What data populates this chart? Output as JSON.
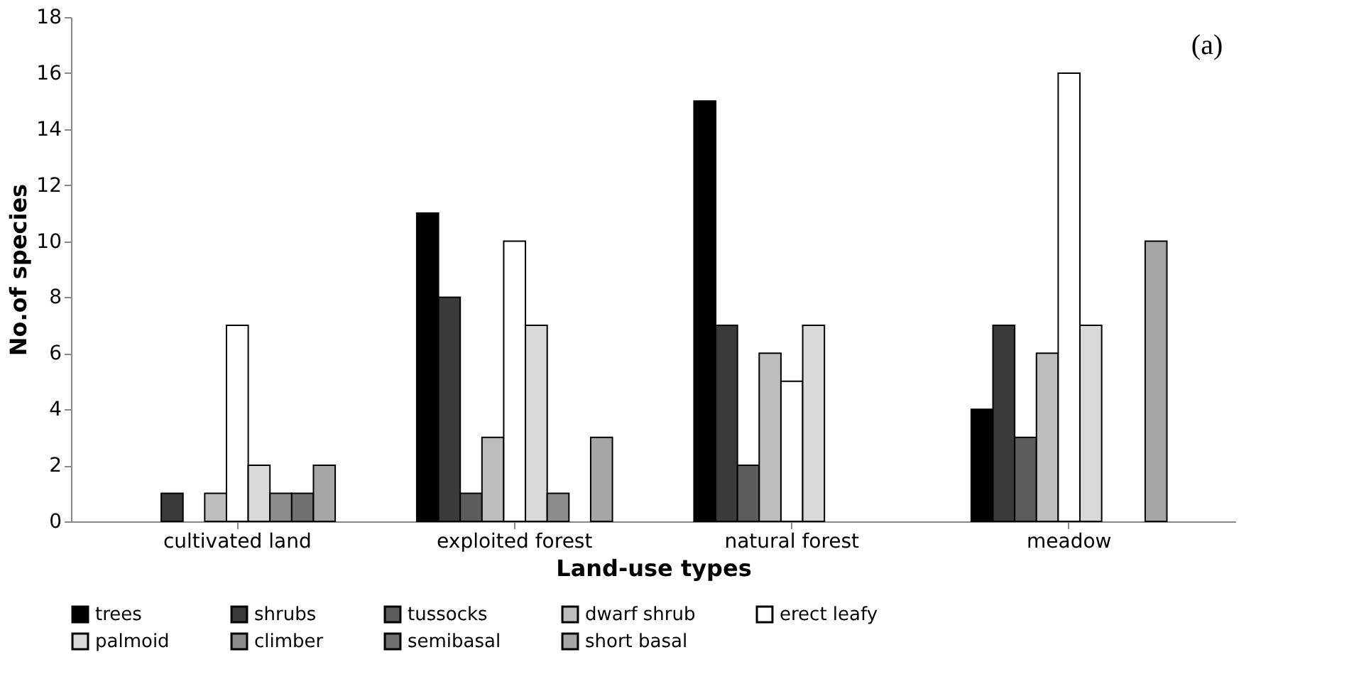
{
  "chart_data": {
    "type": "bar",
    "xlabel": "Land-use types",
    "ylabel": "No.of species",
    "categories": [
      "cultivated land",
      "exploited forest",
      "natural forest",
      "meadow"
    ],
    "series": [
      {
        "name": "trees",
        "color": "#000000",
        "values": [
          null,
          11,
          15,
          4
        ]
      },
      {
        "name": "shrubs",
        "color": "#3a3a3a",
        "values": [
          1,
          8,
          7,
          7
        ]
      },
      {
        "name": "tussocks",
        "color": "#5c5c5c",
        "values": [
          null,
          1,
          2,
          3
        ]
      },
      {
        "name": "dwarf shrub",
        "color": "#bdbdbd",
        "values": [
          1,
          3,
          6,
          6
        ]
      },
      {
        "name": "erect leafy",
        "color": "#ffffff",
        "values": [
          7,
          10,
          5,
          16
        ]
      },
      {
        "name": "palmoid",
        "color": "#d9d9d9",
        "values": [
          2,
          7,
          7,
          7
        ]
      },
      {
        "name": "climber",
        "color": "#8c8c8c",
        "values": [
          1,
          1,
          null,
          null
        ]
      },
      {
        "name": "semibasal",
        "color": "#707070",
        "values": [
          1,
          null,
          null,
          null
        ]
      },
      {
        "name": "short basal",
        "color": "#a6a6a6",
        "values": [
          2,
          3,
          null,
          10
        ]
      }
    ],
    "ylim": [
      0,
      18
    ],
    "yticks": [
      0,
      2,
      4,
      6,
      8,
      10,
      12,
      14,
      16,
      18
    ],
    "grid": false,
    "legend": "bottom",
    "annotations": [
      "(a)"
    ]
  }
}
